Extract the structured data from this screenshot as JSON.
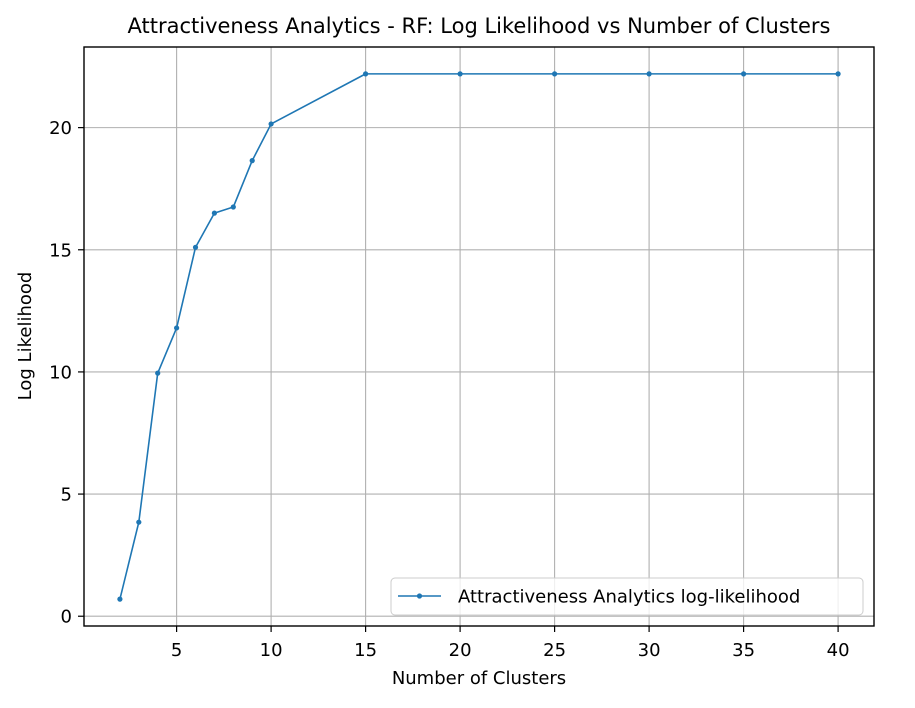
{
  "chart_data": {
    "type": "line",
    "title": "Attractiveness Analytics - RF: Log Likelihood vs Number of Clusters",
    "xlabel": "Number of Clusters",
    "ylabel": "Log Likelihood",
    "xlim": [
      0.1,
      41.9
    ],
    "ylim": [
      -0.4,
      23.3
    ],
    "xticks": [
      5,
      10,
      15,
      20,
      25,
      30,
      35,
      40
    ],
    "yticks": [
      0,
      5,
      10,
      15,
      20
    ],
    "grid": true,
    "legend_position": "lower-right",
    "series": [
      {
        "name": "Attractiveness Analytics log-likelihood",
        "color": "#1f77b4",
        "marker": "circle",
        "x": [
          2,
          3,
          4,
          5,
          6,
          7,
          8,
          9,
          10,
          15,
          20,
          25,
          30,
          35,
          40
        ],
        "y": [
          0.7,
          3.85,
          9.95,
          11.8,
          15.1,
          16.5,
          16.75,
          18.65,
          20.15,
          22.2,
          22.2,
          22.2,
          22.2,
          22.2,
          22.2
        ]
      }
    ]
  }
}
